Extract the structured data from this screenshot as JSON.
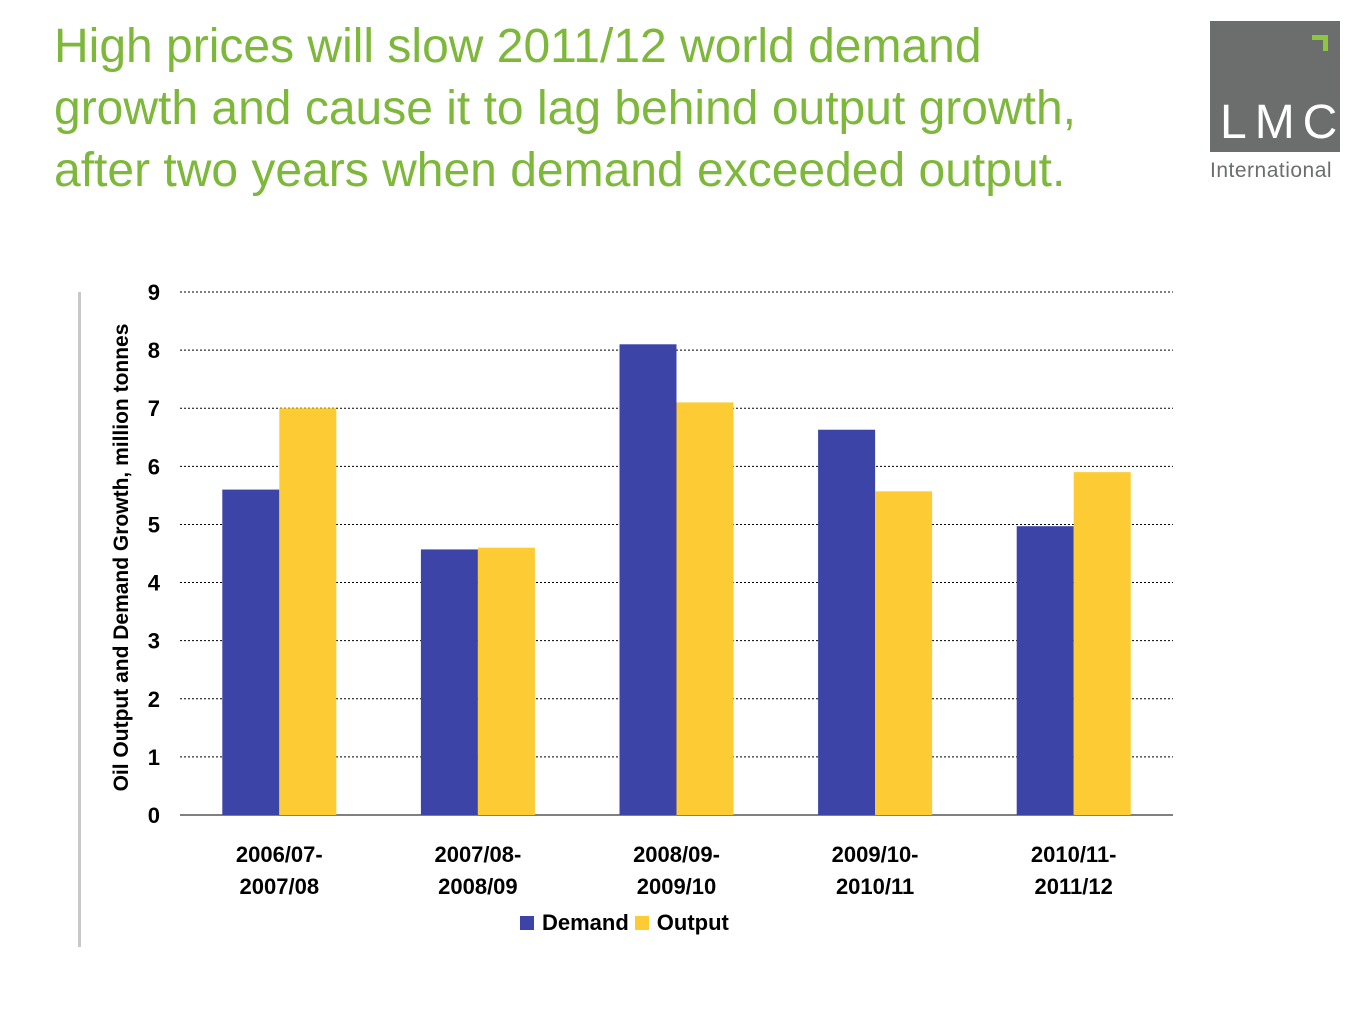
{
  "slide": {
    "title_lines": [
      "High prices will slow 2011/12 world demand",
      "growth and cause it to lag behind output growth,",
      "after two years when demand exceeded output."
    ],
    "logo": {
      "name": "LMC",
      "subtitle": "International"
    }
  },
  "colors": {
    "title": "#7db83a",
    "demand": "#3c44a8",
    "output": "#fdcb33",
    "logo_bg": "#6b6e6d",
    "logo_accent": "#8dc63f"
  },
  "chart_data": {
    "type": "bar",
    "title": "",
    "ylabel": "Oil Output and Demand Growth, million tonnes",
    "xlabel": "",
    "ylim": [
      0,
      9
    ],
    "yticks": [
      0,
      1,
      2,
      3,
      4,
      5,
      6,
      7,
      8,
      9
    ],
    "grid": true,
    "legend_position": "bottom",
    "categories": [
      [
        "2006/07-",
        "2007/08"
      ],
      [
        "2007/08-",
        "2008/09"
      ],
      [
        "2008/09-",
        "2009/10"
      ],
      [
        "2009/10-",
        "2010/11"
      ],
      [
        "2010/11-",
        "2011/12"
      ]
    ],
    "series": [
      {
        "name": "Demand",
        "values": [
          5.6,
          4.57,
          8.1,
          6.63,
          4.97
        ]
      },
      {
        "name": "Output",
        "values": [
          7.0,
          4.6,
          7.1,
          5.57,
          5.9
        ]
      }
    ]
  }
}
